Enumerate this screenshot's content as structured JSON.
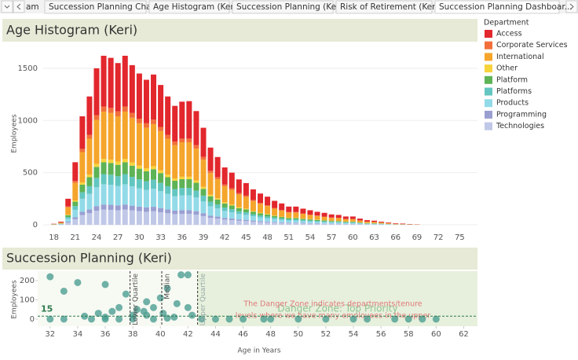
{
  "tabs": [
    "am",
    "Succession Planning Chart",
    "Age Histogram (Keri)",
    "Succession Planning (Keri)",
    "Risk of Retirement (Keri)",
    "Succession Planning Dashboar..."
  ],
  "legend_title": "Department",
  "chart_data": [
    {
      "type": "stacked-histogram",
      "title": "Age Histogram (Keri)",
      "y_label": "Employees",
      "x": [
        18,
        19,
        20,
        21,
        22,
        23,
        24,
        25,
        26,
        27,
        28,
        29,
        30,
        31,
        32,
        33,
        34,
        35,
        36,
        37,
        38,
        39,
        40,
        41,
        42,
        43,
        44,
        45,
        46,
        47,
        48,
        49,
        50,
        51,
        52,
        53,
        54,
        55,
        56,
        57,
        58,
        59,
        60,
        61,
        62,
        63,
        64,
        65,
        66,
        67,
        68,
        69
      ],
      "xlim": [
        16.5,
        77.5
      ],
      "xticks": [
        18,
        21,
        24,
        27,
        30,
        33,
        36,
        39,
        42,
        45,
        48,
        51,
        54,
        57,
        60,
        63,
        66,
        69,
        72,
        75
      ],
      "ylim": [
        -90,
        1740
      ],
      "yticks": [
        0,
        500,
        1000,
        1500
      ],
      "grid": true,
      "series": [
        {
          "name": "Access",
          "color": "#e2272d",
          "values": [
            3,
            8,
            74,
            180,
            312,
            368,
            450,
            486,
            480,
            463,
            486,
            458,
            433,
            417,
            432,
            402,
            368,
            342,
            354,
            359,
            327,
            278,
            222,
            193,
            163,
            150,
            131,
            120,
            102,
            90,
            82,
            68,
            63,
            52,
            52,
            46,
            42,
            36,
            36,
            30,
            27,
            24,
            24,
            18,
            14,
            12,
            8,
            6,
            5,
            5,
            3,
            2
          ]
        },
        {
          "name": "Corporate Services",
          "color": "#f26f3a",
          "values": [
            0,
            1,
            8,
            18,
            31,
            37,
            45,
            49,
            48,
            47,
            49,
            46,
            44,
            42,
            43,
            40,
            37,
            34,
            35,
            35,
            33,
            28,
            22,
            20,
            17,
            15,
            13,
            12,
            10,
            9,
            8,
            7,
            6,
            5,
            5,
            5,
            4,
            4,
            3,
            3,
            3,
            2,
            2,
            2,
            1,
            1,
            1,
            1,
            1,
            0,
            0,
            0
          ]
        },
        {
          "name": "International",
          "color": "#f5a52b",
          "values": [
            3,
            8,
            70,
            168,
            291,
            344,
            420,
            454,
            448,
            434,
            454,
            428,
            406,
            389,
            403,
            375,
            344,
            319,
            330,
            330,
            305,
            260,
            207,
            182,
            154,
            140,
            122,
            112,
            95,
            84,
            76,
            64,
            57,
            49,
            49,
            43,
            39,
            35,
            32,
            28,
            27,
            22,
            22,
            17,
            13,
            11,
            8,
            6,
            4,
            3,
            2,
            2
          ]
        },
        {
          "name": "Other",
          "color": "#f7d33c",
          "values": [
            0,
            1,
            5,
            12,
            21,
            25,
            30,
            32,
            32,
            31,
            32,
            31,
            29,
            28,
            29,
            27,
            25,
            23,
            24,
            24,
            22,
            19,
            15,
            13,
            11,
            10,
            9,
            8,
            7,
            6,
            5,
            5,
            4,
            4,
            4,
            3,
            3,
            3,
            2,
            2,
            2,
            2,
            2,
            1,
            1,
            1,
            1,
            0,
            0,
            0,
            0,
            0
          ]
        },
        {
          "name": "Platform",
          "color": "#5db356",
          "values": [
            1,
            2,
            18,
            42,
            73,
            86,
            105,
            113,
            112,
            109,
            113,
            107,
            102,
            97,
            101,
            94,
            86,
            80,
            83,
            83,
            76,
            65,
            52,
            46,
            39,
            35,
            30,
            28,
            24,
            21,
            19,
            16,
            14,
            12,
            12,
            11,
            10,
            9,
            8,
            7,
            7,
            6,
            6,
            4,
            3,
            3,
            2,
            2,
            1,
            1,
            1,
            0
          ]
        },
        {
          "name": "Platforms",
          "color": "#63c6c1",
          "values": [
            1,
            2,
            15,
            36,
            62,
            74,
            90,
            97,
            96,
            93,
            97,
            92,
            87,
            83,
            86,
            80,
            74,
            68,
            71,
            71,
            65,
            56,
            44,
            39,
            33,
            30,
            26,
            24,
            20,
            18,
            16,
            14,
            12,
            11,
            11,
            9,
            8,
            8,
            7,
            6,
            6,
            5,
            5,
            4,
            3,
            2,
            2,
            1,
            1,
            1,
            0,
            0
          ]
        },
        {
          "name": "Products",
          "color": "#92dae8",
          "values": [
            1,
            4,
            30,
            72,
            125,
            148,
            180,
            194,
            192,
            186,
            194,
            184,
            174,
            167,
            173,
            161,
            148,
            137,
            142,
            142,
            131,
            112,
            89,
            78,
            66,
            60,
            52,
            48,
            41,
            36,
            32,
            28,
            25,
            21,
            21,
            19,
            17,
            15,
            14,
            12,
            11,
            10,
            10,
            7,
            5,
            5,
            4,
            3,
            2,
            1,
            1,
            1
          ]
        },
        {
          "name": "Programming",
          "color": "#9a9fd2",
          "values": [
            0,
            1,
            8,
            18,
            31,
            37,
            45,
            49,
            48,
            47,
            49,
            46,
            44,
            42,
            43,
            40,
            37,
            34,
            35,
            35,
            33,
            28,
            22,
            20,
            17,
            15,
            13,
            12,
            10,
            9,
            8,
            7,
            6,
            5,
            5,
            5,
            4,
            4,
            3,
            3,
            3,
            2,
            2,
            2,
            1,
            1,
            1,
            1,
            0,
            0,
            0,
            0
          ]
        },
        {
          "name": "Technologies",
          "color": "#c0c8e8",
          "values": [
            1,
            3,
            22,
            54,
            94,
            111,
            135,
            146,
            144,
            140,
            146,
            138,
            131,
            125,
            130,
            121,
            111,
            103,
            106,
            106,
            98,
            84,
            67,
            59,
            50,
            45,
            39,
            36,
            31,
            27,
            24,
            21,
            18,
            16,
            16,
            14,
            13,
            11,
            10,
            9,
            9,
            7,
            7,
            5,
            4,
            4,
            3,
            2,
            1,
            1,
            1,
            0
          ]
        }
      ]
    },
    {
      "type": "scatter",
      "title": "Succession Planning (Keri)",
      "x_label": "Age in Years",
      "y_label": "Employees",
      "x": [
        32,
        33,
        34,
        32,
        33,
        35,
        36,
        36,
        37,
        37,
        37.5,
        38,
        38.3,
        38.8,
        39,
        39,
        39.5,
        40,
        40.2,
        40.5,
        41,
        41.5,
        42,
        42,
        42.3,
        41.2,
        36.5,
        35.5,
        34.5,
        36,
        38,
        39.5,
        40.5,
        43,
        44,
        45,
        46,
        47.5,
        48,
        50,
        52,
        54,
        55,
        57,
        58,
        59,
        60
      ],
      "values": [
        220,
        145,
        190,
        0,
        0,
        0,
        0,
        180,
        0,
        60,
        130,
        20,
        50,
        40,
        90,
        20,
        60,
        110,
        30,
        160,
        10,
        230,
        230,
        60,
        20,
        80,
        40,
        30,
        15,
        10,
        0,
        0,
        5,
        0,
        0,
        0,
        0,
        0,
        0,
        0,
        0,
        0,
        0,
        0,
        0,
        0,
        0
      ],
      "color": "#4c9f92",
      "xlim": [
        31.1,
        63
      ],
      "xticks": [
        32,
        34,
        36,
        38,
        40,
        42,
        44,
        46,
        48,
        50,
        52,
        54,
        56,
        58,
        60,
        62
      ],
      "ylim": [
        -37,
        249
      ],
      "yticks": [
        0,
        100,
        200
      ],
      "reference_lines": [
        {
          "label": "Lower Quartile",
          "value": 37.8
        },
        {
          "label": "Median",
          "value": 40.1
        },
        {
          "label": "Upper Quartile",
          "value": 42.7
        }
      ],
      "threshold": 15,
      "danger_zone_title": "Danger Zone: Top Priority",
      "danger_zone_note": [
        "The Danger Zone indicates departments/tenure",
        "levels where we have many employees in the upper"
      ]
    }
  ]
}
